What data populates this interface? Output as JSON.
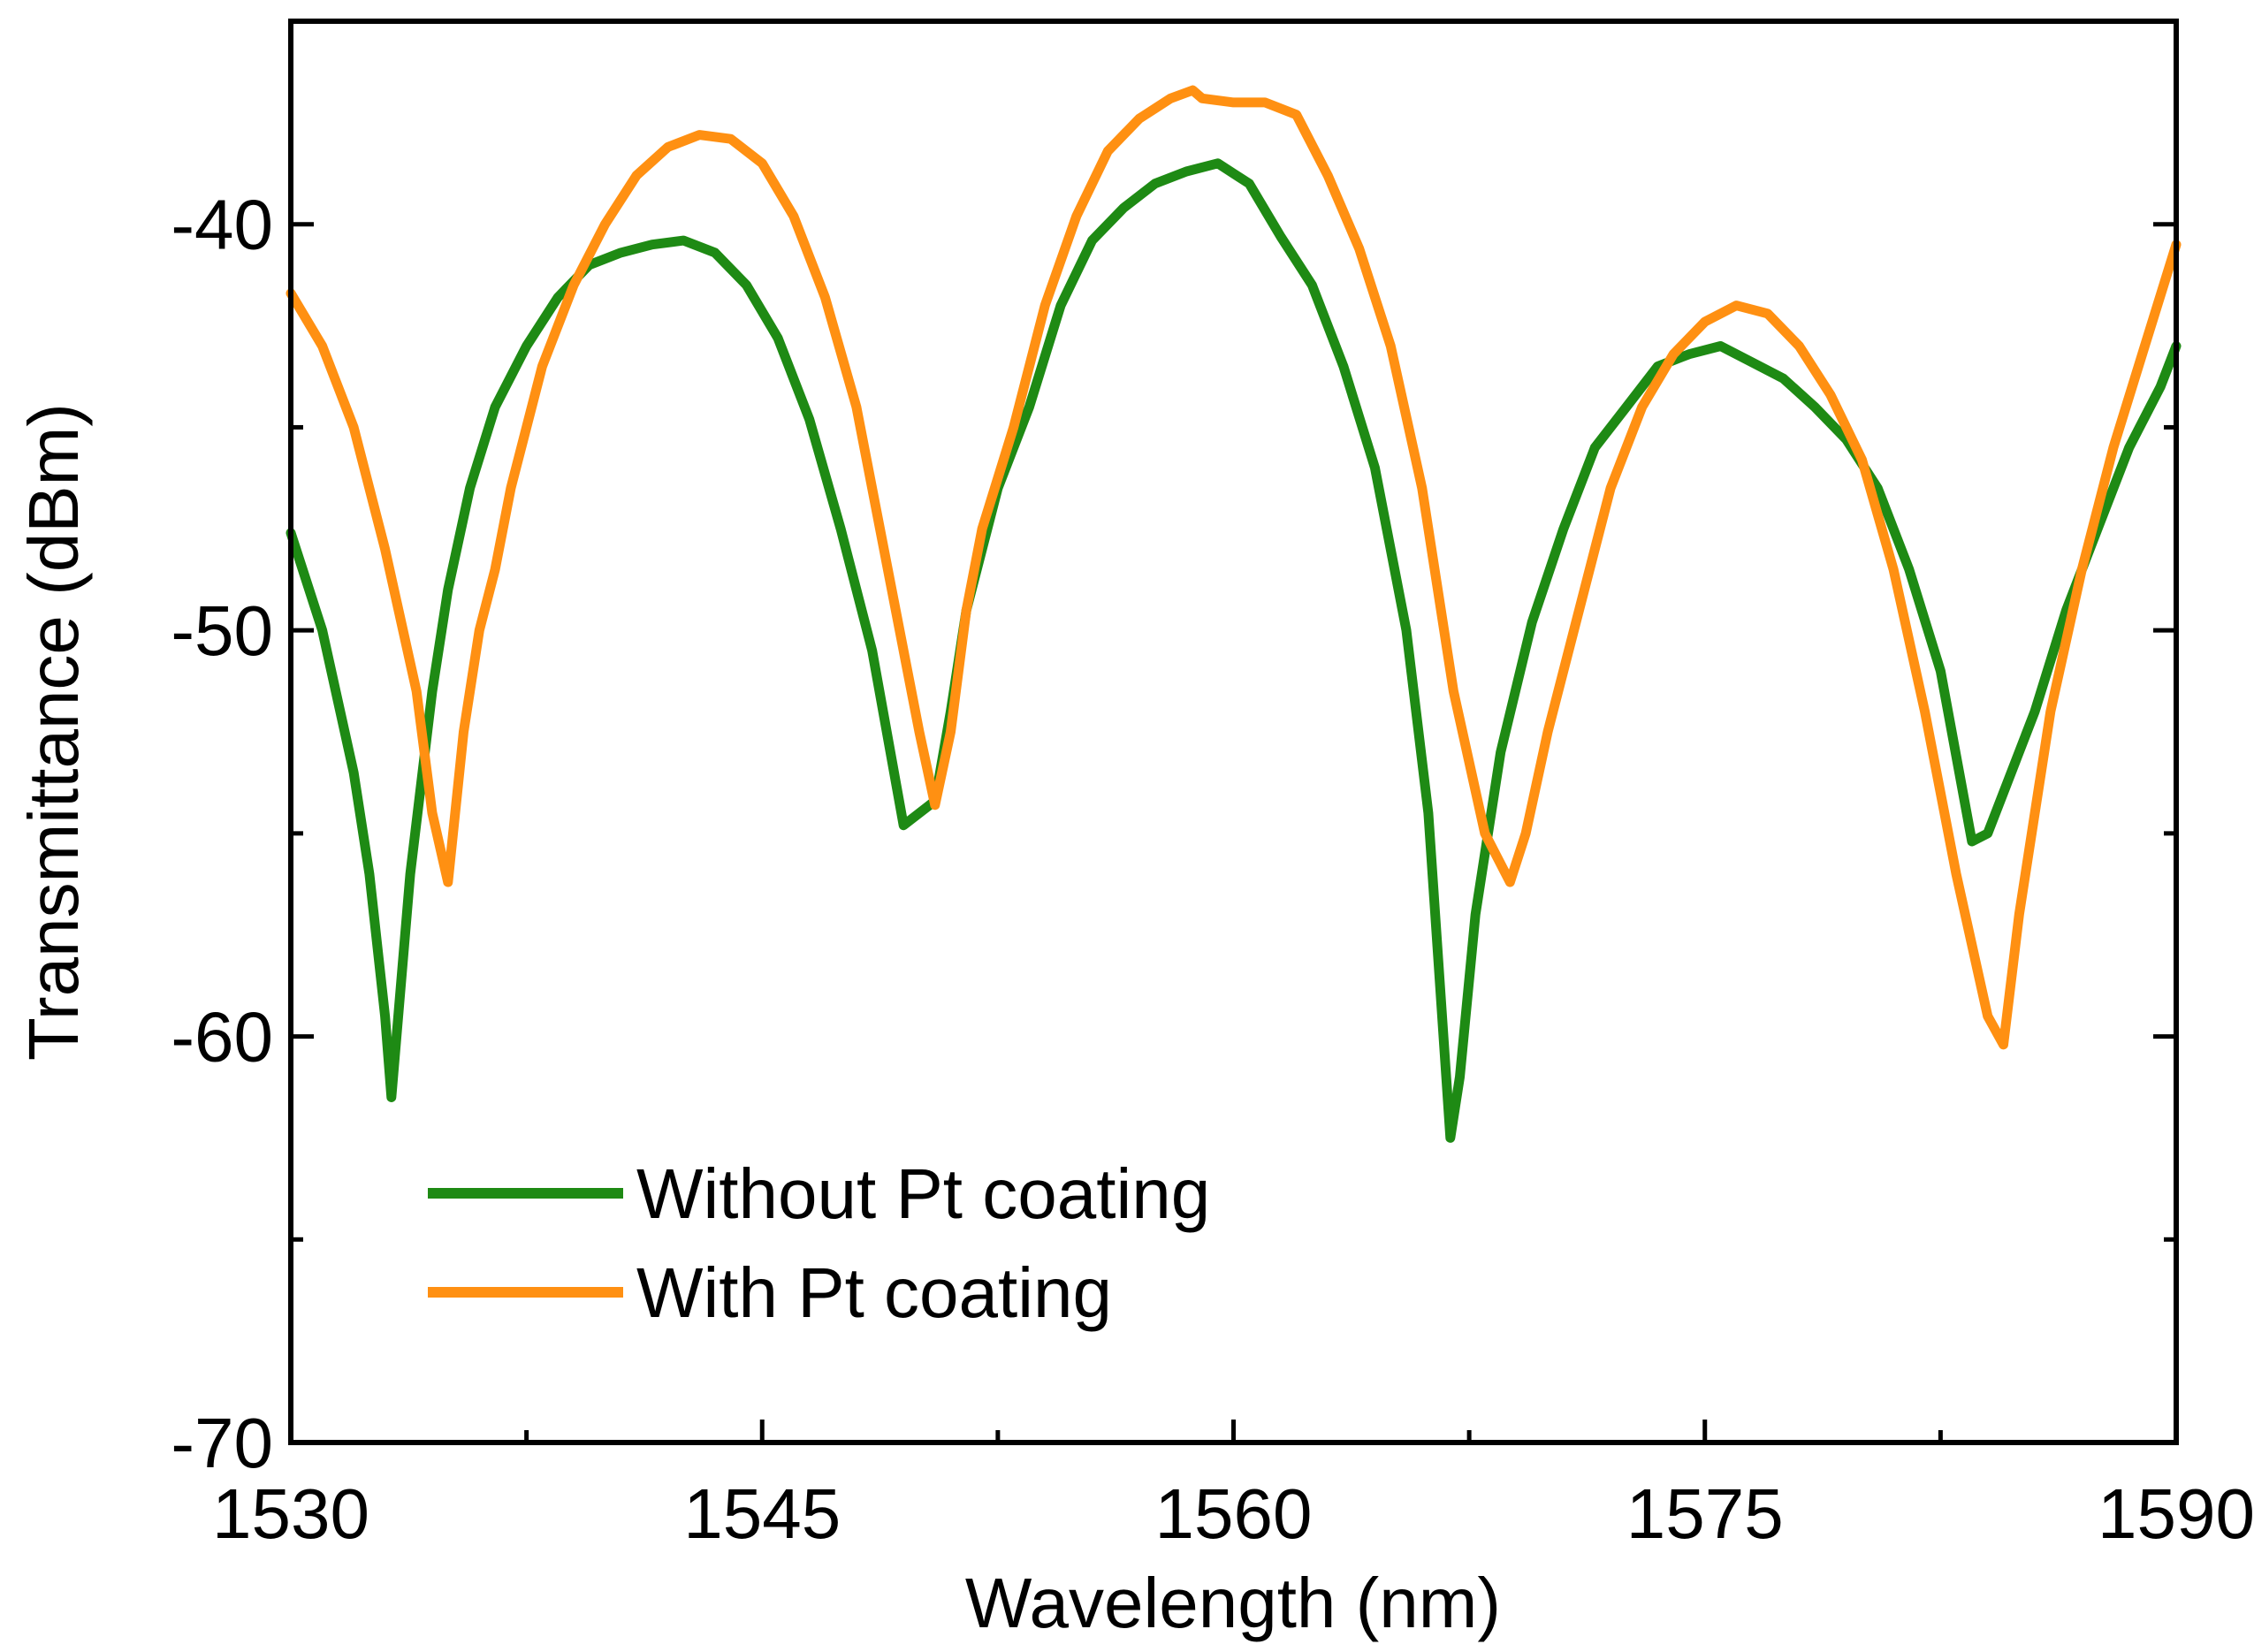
{
  "chart_data": {
    "type": "line",
    "title": "",
    "xlabel": "Wavelength (nm)",
    "ylabel": "Transmittance (dBm)",
    "xlim": [
      1530,
      1590
    ],
    "ylim": [
      -70,
      -35
    ],
    "xticks": [
      1530,
      1545,
      1560,
      1575,
      1590
    ],
    "xtick_labels": [
      "1530",
      "1545",
      "1560",
      "1575",
      "1590"
    ],
    "xminor": [
      1537.5,
      1552.5,
      1567.5,
      1582.5
    ],
    "yticks": [
      -70,
      -60,
      -50,
      -40
    ],
    "ytick_labels": [
      "-70",
      "-60",
      "-50",
      "-40"
    ],
    "yminor": [
      -65,
      -55,
      -45
    ],
    "grid": false,
    "legend_position": "bottom-left",
    "series": [
      {
        "name": "Without Pt coating",
        "color": "#1e8a14",
        "x": [
          1530,
          1531,
          1532,
          1532.5,
          1533,
          1533.2,
          1533.8,
          1534.5,
          1535,
          1535.7,
          1536.5,
          1537.5,
          1538.5,
          1539.5,
          1540.5,
          1541.5,
          1542.5,
          1543.5,
          1544.5,
          1545.5,
          1546.5,
          1547.5,
          1548.5,
          1549.5,
          1550.5,
          1551,
          1551.5,
          1552.5,
          1553.5,
          1554.5,
          1555.5,
          1556.5,
          1557.5,
          1558.5,
          1559.5,
          1560.5,
          1561.5,
          1562.5,
          1563.5,
          1564.5,
          1565.5,
          1566.2,
          1566.9,
          1567.2,
          1567.7,
          1568.5,
          1569.5,
          1570.5,
          1571.5,
          1572.5,
          1573.5,
          1574.5,
          1575.5,
          1576.5,
          1577.5,
          1578.5,
          1579.5,
          1580.5,
          1581.5,
          1582.5,
          1583.5,
          1584,
          1584.5,
          1585.5,
          1586.5,
          1587.5,
          1588.5,
          1589.5,
          1590
        ],
        "y": [
          -47.6,
          -50,
          -53.5,
          -56,
          -59.5,
          -61.5,
          -56,
          -51.5,
          -49,
          -46.5,
          -44.5,
          -43,
          -41.8,
          -41,
          -40.7,
          -40.5,
          -40.4,
          -40.7,
          -41.5,
          -42.8,
          -44.8,
          -47.5,
          -50.5,
          -54.8,
          -54.2,
          -52,
          -49.5,
          -46.5,
          -44.5,
          -42,
          -40.4,
          -39.6,
          -39,
          -38.7,
          -38.5,
          -39,
          -40.3,
          -41.5,
          -43.5,
          -46,
          -50,
          -54.5,
          -62.5,
          -61,
          -57,
          -53,
          -49.8,
          -47.5,
          -45.5,
          -44.5,
          -43.5,
          -43.2,
          -43,
          -43.4,
          -43.8,
          -44.5,
          -45.3,
          -46.5,
          -48.5,
          -51,
          -55.2,
          -55,
          -54,
          -52,
          -49.5,
          -47.5,
          -45.5,
          -44,
          -43
        ]
      },
      {
        "name": "With Pt coating",
        "color": "#ff9012",
        "x": [
          1530,
          1531,
          1532,
          1533,
          1534,
          1534.5,
          1535,
          1535.5,
          1536,
          1536.5,
          1537,
          1538,
          1539,
          1540,
          1541,
          1542,
          1543,
          1544,
          1545,
          1546,
          1547,
          1548,
          1549,
          1550,
          1550.5,
          1551,
          1551.5,
          1552,
          1553,
          1554,
          1555,
          1556,
          1557,
          1558,
          1558.7,
          1559,
          1560,
          1561,
          1562,
          1563,
          1564,
          1565,
          1566,
          1567,
          1568,
          1568.8,
          1569.3,
          1570,
          1571,
          1572,
          1573,
          1574,
          1575,
          1576,
          1577,
          1578,
          1579,
          1580,
          1581,
          1582,
          1583,
          1584,
          1584.5,
          1585,
          1586,
          1587,
          1588,
          1589,
          1590
        ],
        "y": [
          -41.7,
          -43,
          -45,
          -48,
          -51.5,
          -54.5,
          -56.2,
          -52.5,
          -50,
          -48.5,
          -46.5,
          -43.5,
          -41.5,
          -40,
          -38.8,
          -38.1,
          -37.8,
          -37.9,
          -38.5,
          -39.8,
          -41.8,
          -44.5,
          -48.5,
          -52.5,
          -54.3,
          -52.5,
          -49.5,
          -47.5,
          -45,
          -42,
          -39.8,
          -38.2,
          -37.4,
          -36.9,
          -36.7,
          -36.9,
          -37,
          -37,
          -37.3,
          -38.8,
          -40.6,
          -43,
          -46.5,
          -51.5,
          -55,
          -56.2,
          -55,
          -52.5,
          -49.5,
          -46.5,
          -44.5,
          -43.2,
          -42.4,
          -42,
          -42.2,
          -43,
          -44.2,
          -45.8,
          -48.5,
          -52,
          -56,
          -59.5,
          -60.2,
          -57,
          -52,
          -48.5,
          -45.5,
          -43,
          -40.5
        ]
      }
    ]
  }
}
